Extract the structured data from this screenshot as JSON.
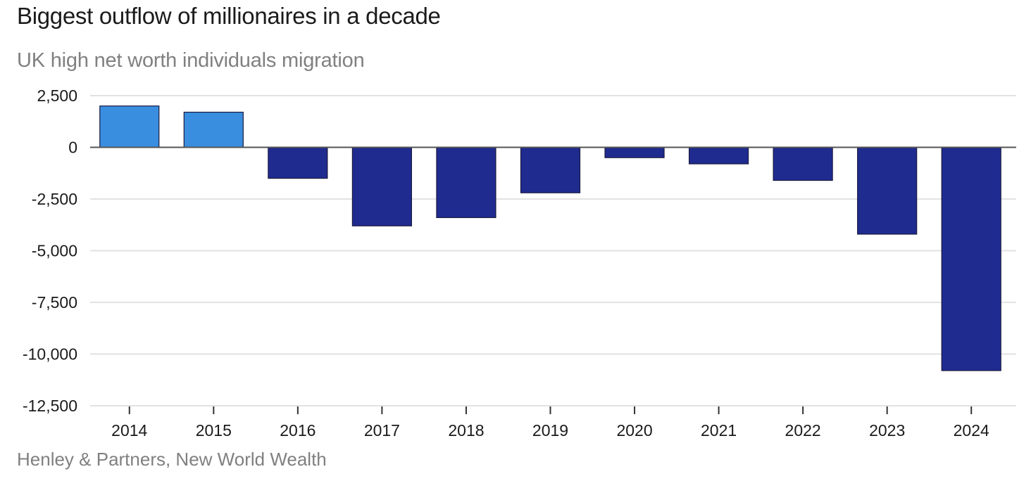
{
  "header": {
    "title": "Biggest outflow of millionaires in a decade",
    "subtitle": "UK high net worth individuals migration"
  },
  "footer": {
    "source": "Henley & Partners, New World Wealth"
  },
  "colors": {
    "positive": "#3a8ee0",
    "negative": "#1f2b8f",
    "grid": "#e2e2e2",
    "zero_line": "#555555"
  },
  "chart_data": {
    "type": "bar",
    "title": "Biggest outflow of millionaires in a decade",
    "subtitle": "UK high net worth individuals migration",
    "xlabel": "",
    "ylabel": "",
    "categories": [
      "2014",
      "2015",
      "2016",
      "2017",
      "2018",
      "2019",
      "2020",
      "2021",
      "2022",
      "2023",
      "2024"
    ],
    "values": [
      2000,
      1700,
      -1500,
      -3800,
      -3400,
      -2200,
      -500,
      -800,
      -1600,
      -4200,
      -10800
    ],
    "ylim": [
      -12500,
      2500
    ],
    "yticks": [
      2500,
      0,
      -2500,
      -5000,
      -7500,
      -10000,
      -12500
    ],
    "ytick_labels": [
      "2,500",
      "0",
      "-2,500",
      "-5,000",
      "-7,500",
      "-10,000",
      "-12,500"
    ],
    "grid": true,
    "legend": "none"
  }
}
